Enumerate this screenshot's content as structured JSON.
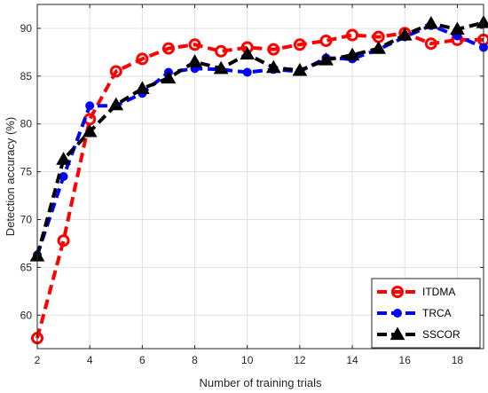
{
  "chart_data": {
    "type": "line",
    "xlabel": "Number of training trials",
    "ylabel": "Detection accuracy (%)",
    "xlim": [
      2,
      19
    ],
    "ylim": [
      56.5,
      92.5
    ],
    "xticks": [
      2,
      4,
      6,
      8,
      10,
      12,
      14,
      16,
      18
    ],
    "yticks": [
      60,
      65,
      70,
      75,
      80,
      85,
      90
    ],
    "grid": true,
    "legend_position": "bottom-right",
    "x": [
      2,
      3,
      4,
      5,
      6,
      7,
      8,
      9,
      10,
      11,
      12,
      13,
      14,
      15,
      16,
      17,
      18,
      19
    ],
    "series": [
      {
        "name": "ITDMA",
        "color": "#ff0000",
        "marker": "circle",
        "values": [
          57.6,
          67.8,
          80.5,
          85.5,
          86.8,
          87.9,
          88.3,
          87.6,
          88.0,
          87.8,
          88.3,
          88.7,
          89.3,
          89.1,
          89.5,
          88.4,
          88.8,
          88.8
        ]
      },
      {
        "name": "TRCA",
        "color": "#0000ff",
        "marker": "circle",
        "values": [
          66.3,
          74.5,
          81.9,
          81.9,
          83.2,
          85.4,
          85.8,
          85.7,
          85.4,
          85.7,
          85.5,
          86.9,
          86.8,
          87.8,
          89.1,
          90.3,
          89.2,
          88.0
        ]
      },
      {
        "name": "SSCOR",
        "color": "#000000",
        "marker": "triangle",
        "values": [
          66.2,
          76.3,
          79.2,
          82.0,
          83.7,
          84.8,
          86.5,
          85.8,
          87.3,
          85.9,
          85.6,
          86.7,
          87.2,
          87.9,
          89.3,
          90.5,
          89.9,
          90.6
        ]
      }
    ]
  }
}
